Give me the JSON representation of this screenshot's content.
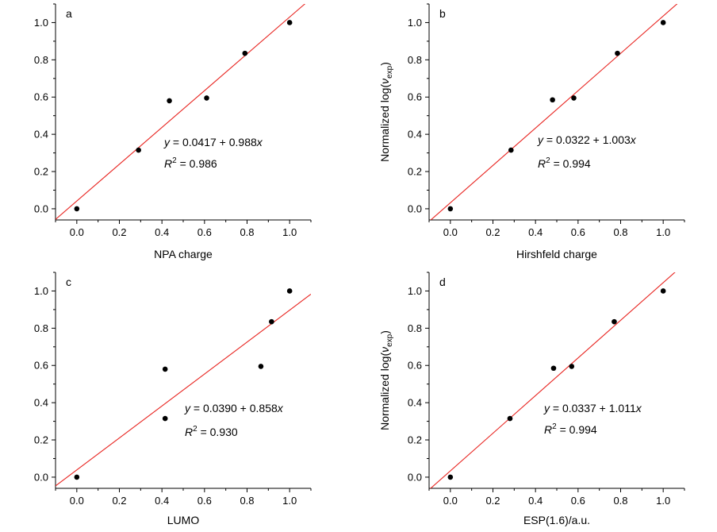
{
  "chart_data": [
    {
      "type": "scatter",
      "panel_label": "a",
      "xlabel": "NPA charge",
      "ylabel": "",
      "xlim": [
        -0.1,
        1.1
      ],
      "ylim": [
        -0.06,
        1.1
      ],
      "xticks": [
        "0.0",
        "0.2",
        "0.4",
        "0.6",
        "0.8",
        "1.0"
      ],
      "yticks": [
        "0.0",
        "0.2",
        "0.4",
        "0.6",
        "0.8",
        "1.0"
      ],
      "x": [
        0.0,
        0.29,
        0.435,
        0.61,
        0.79,
        1.0
      ],
      "y": [
        0.0,
        0.315,
        0.58,
        0.595,
        0.835,
        1.0
      ],
      "fit": {
        "intercept": 0.0417,
        "slope": 0.988
      },
      "equation": {
        "y_var": "y",
        "rhs": " = 0.0417 + 0.988",
        "x_var": "x",
        "r2_label": "R",
        "r2_sup": "2",
        "r2_value": " = 0.986"
      },
      "marker_color": "#000000",
      "line_color": "#e8231f"
    },
    {
      "type": "scatter",
      "panel_label": "b",
      "xlabel": "Hirshfeld charge",
      "ylabel": {
        "prefix": "Normalized log(",
        "var": "ν",
        "sub": "exp",
        "suffix": ")"
      },
      "xlim": [
        -0.1,
        1.1
      ],
      "ylim": [
        -0.06,
        1.1
      ],
      "xticks": [
        "0.0",
        "0.2",
        "0.4",
        "0.6",
        "0.8",
        "1.0"
      ],
      "yticks": [
        "0.0",
        "0.2",
        "0.4",
        "0.6",
        "0.8",
        "1.0"
      ],
      "x": [
        0.0,
        0.285,
        0.48,
        0.58,
        0.785,
        1.0
      ],
      "y": [
        0.0,
        0.315,
        0.585,
        0.595,
        0.835,
        1.0
      ],
      "fit": {
        "intercept": 0.0322,
        "slope": 1.003
      },
      "equation": {
        "y_var": "y",
        "rhs": " = 0.0322 + 1.003",
        "x_var": "x",
        "r2_label": "R",
        "r2_sup": "2",
        "r2_value": " = 0.994"
      },
      "marker_color": "#000000",
      "line_color": "#e8231f"
    },
    {
      "type": "scatter",
      "panel_label": "c",
      "xlabel": "LUMO",
      "ylabel": "",
      "xlim": [
        -0.1,
        1.1
      ],
      "ylim": [
        -0.06,
        1.1
      ],
      "xticks": [
        "0.0",
        "0.2",
        "0.4",
        "0.6",
        "0.8",
        "1.0"
      ],
      "yticks": [
        "0.0",
        "0.2",
        "0.4",
        "0.6",
        "0.8",
        "1.0"
      ],
      "x": [
        0.0,
        0.415,
        0.415,
        0.865,
        0.915,
        1.0
      ],
      "y": [
        0.0,
        0.315,
        0.58,
        0.595,
        0.835,
        1.0
      ],
      "fit": {
        "intercept": 0.039,
        "slope": 0.858
      },
      "equation": {
        "y_var": "y",
        "rhs": " = 0.0390 + 0.858",
        "x_var": "x",
        "r2_label": "R",
        "r2_sup": "2",
        "r2_value": " = 0.930"
      },
      "marker_color": "#000000",
      "line_color": "#e8231f"
    },
    {
      "type": "scatter",
      "panel_label": "d",
      "xlabel": "ESP(1.6)/a.u.",
      "ylabel": {
        "prefix": "Normalized log(",
        "var": "ν",
        "sub": "exp",
        "suffix": ")"
      },
      "xlim": [
        -0.1,
        1.1
      ],
      "ylim": [
        -0.06,
        1.1
      ],
      "xticks": [
        "0.0",
        "0.2",
        "0.4",
        "0.6",
        "0.8",
        "1.0"
      ],
      "yticks": [
        "0.0",
        "0.2",
        "0.4",
        "0.6",
        "0.8",
        "1.0"
      ],
      "x": [
        0.0,
        0.28,
        0.485,
        0.57,
        0.77,
        1.0
      ],
      "y": [
        0.0,
        0.315,
        0.585,
        0.595,
        0.835,
        1.0
      ],
      "fit": {
        "intercept": 0.0337,
        "slope": 1.011
      },
      "equation": {
        "y_var": "y",
        "rhs": " = 0.0337 + 1.011",
        "x_var": "x",
        "r2_label": "R",
        "r2_sup": "2",
        "r2_value": " = 0.994"
      },
      "marker_color": "#000000",
      "line_color": "#e8231f"
    }
  ]
}
